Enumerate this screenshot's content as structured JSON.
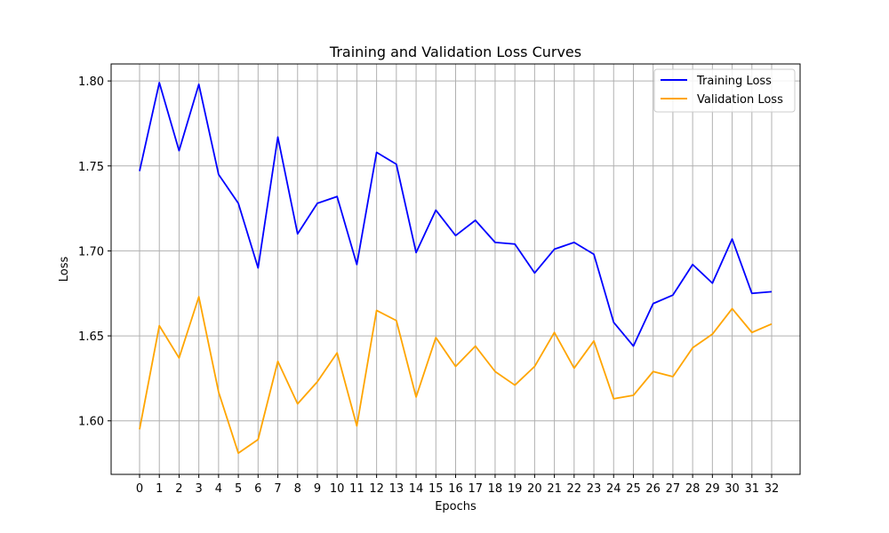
{
  "chart_data": {
    "type": "line",
    "title": "Training and Validation Loss Curves",
    "xlabel": "Epochs",
    "ylabel": "Loss",
    "x": [
      0,
      1,
      2,
      3,
      4,
      5,
      6,
      7,
      8,
      9,
      10,
      11,
      12,
      13,
      14,
      15,
      16,
      17,
      18,
      19,
      20,
      21,
      22,
      23,
      24,
      25,
      26,
      27,
      28,
      29,
      30,
      31,
      32
    ],
    "ylim": [
      1.5685,
      1.81
    ],
    "yticks": [
      "1.60",
      "1.65",
      "1.70",
      "1.75",
      "1.80"
    ],
    "grid": true,
    "legend_position": "top-right",
    "series": [
      {
        "name": "Training Loss",
        "color": "#0000ff",
        "values": [
          1.747,
          1.799,
          1.759,
          1.798,
          1.745,
          1.728,
          1.69,
          1.767,
          1.71,
          1.728,
          1.732,
          1.692,
          1.758,
          1.751,
          1.699,
          1.724,
          1.709,
          1.718,
          1.705,
          1.704,
          1.687,
          1.701,
          1.705,
          1.698,
          1.658,
          1.644,
          1.669,
          1.674,
          1.692,
          1.681,
          1.707,
          1.675,
          1.676
        ]
      },
      {
        "name": "Validation Loss",
        "color": "#ffa500",
        "values": [
          1.595,
          1.656,
          1.637,
          1.673,
          1.617,
          1.581,
          1.589,
          1.635,
          1.61,
          1.623,
          1.64,
          1.597,
          1.665,
          1.659,
          1.614,
          1.649,
          1.632,
          1.644,
          1.629,
          1.621,
          1.632,
          1.652,
          1.631,
          1.647,
          1.613,
          1.615,
          1.629,
          1.626,
          1.643,
          1.651,
          1.666,
          1.652,
          1.657
        ]
      }
    ]
  }
}
